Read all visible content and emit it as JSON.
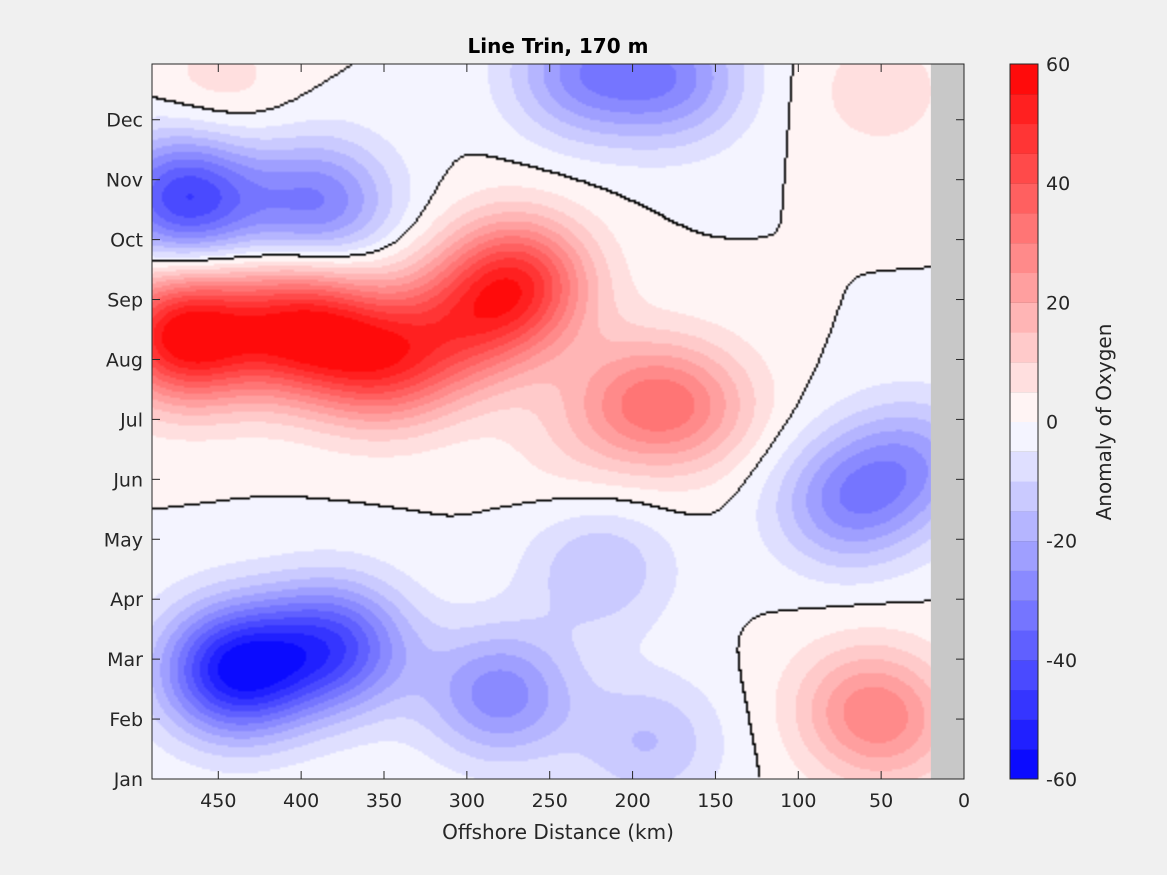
{
  "chart_data": {
    "type": "heatmap",
    "title": "Line Trin, 170 m",
    "xlabel": "Offshore Distance (km)",
    "ylabel": "",
    "colorbar_label": "Anomaly of Oxygen",
    "x_ticks": [
      450,
      400,
      350,
      300,
      250,
      200,
      150,
      100,
      50,
      0
    ],
    "xlim": [
      490,
      0
    ],
    "x_reversed": true,
    "y_ticks": [
      "Jan",
      "Feb",
      "Mar",
      "Apr",
      "May",
      "Jun",
      "Jul",
      "Aug",
      "Sep",
      "Oct",
      "Nov",
      "Dec"
    ],
    "colorbar_ticks": [
      60,
      40,
      20,
      0,
      -20,
      -40,
      -60
    ],
    "clim": [
      -60,
      60
    ],
    "contour_levels": 24,
    "zero_contour": true,
    "no_data_region_km": [
      0,
      20
    ],
    "no_data_color": "#c8c8c8",
    "colormap_positive": "#ff0000",
    "colormap_negative": "#0000ff",
    "blobs": [
      {
        "km": 470,
        "month": 7.4,
        "value": 60
      },
      {
        "km": 400,
        "month": 7.5,
        "value": 50
      },
      {
        "km": 350,
        "month": 7.0,
        "value": 40
      },
      {
        "km": 270,
        "month": 8.3,
        "value": 45
      },
      {
        "km": 300,
        "month": 7.5,
        "value": 25
      },
      {
        "km": 200,
        "month": 6.3,
        "value": 20
      },
      {
        "km": 165,
        "month": 6.2,
        "value": 20
      },
      {
        "km": 240,
        "month": 5.5,
        "value": 5
      },
      {
        "km": 60,
        "month": 1.2,
        "value": 20
      },
      {
        "km": 40,
        "month": 0.8,
        "value": 12
      },
      {
        "km": 450,
        "month": 11.5,
        "value": 8
      },
      {
        "km": 50,
        "month": 11.5,
        "value": 8
      },
      {
        "km": 440,
        "month": 1.8,
        "value": -55
      },
      {
        "km": 380,
        "month": 2.2,
        "value": -40
      },
      {
        "km": 280,
        "month": 1.4,
        "value": -28
      },
      {
        "km": 470,
        "month": 9.7,
        "value": -45
      },
      {
        "km": 390,
        "month": 9.6,
        "value": -30
      },
      {
        "km": 230,
        "month": 11.8,
        "value": -25
      },
      {
        "km": 175,
        "month": 11.7,
        "value": -25
      },
      {
        "km": 70,
        "month": 4.6,
        "value": -25
      },
      {
        "km": 30,
        "month": 5.3,
        "value": -20
      },
      {
        "km": 220,
        "month": 3.5,
        "value": -15
      },
      {
        "km": 190,
        "month": 0.6,
        "value": -15
      }
    ]
  }
}
